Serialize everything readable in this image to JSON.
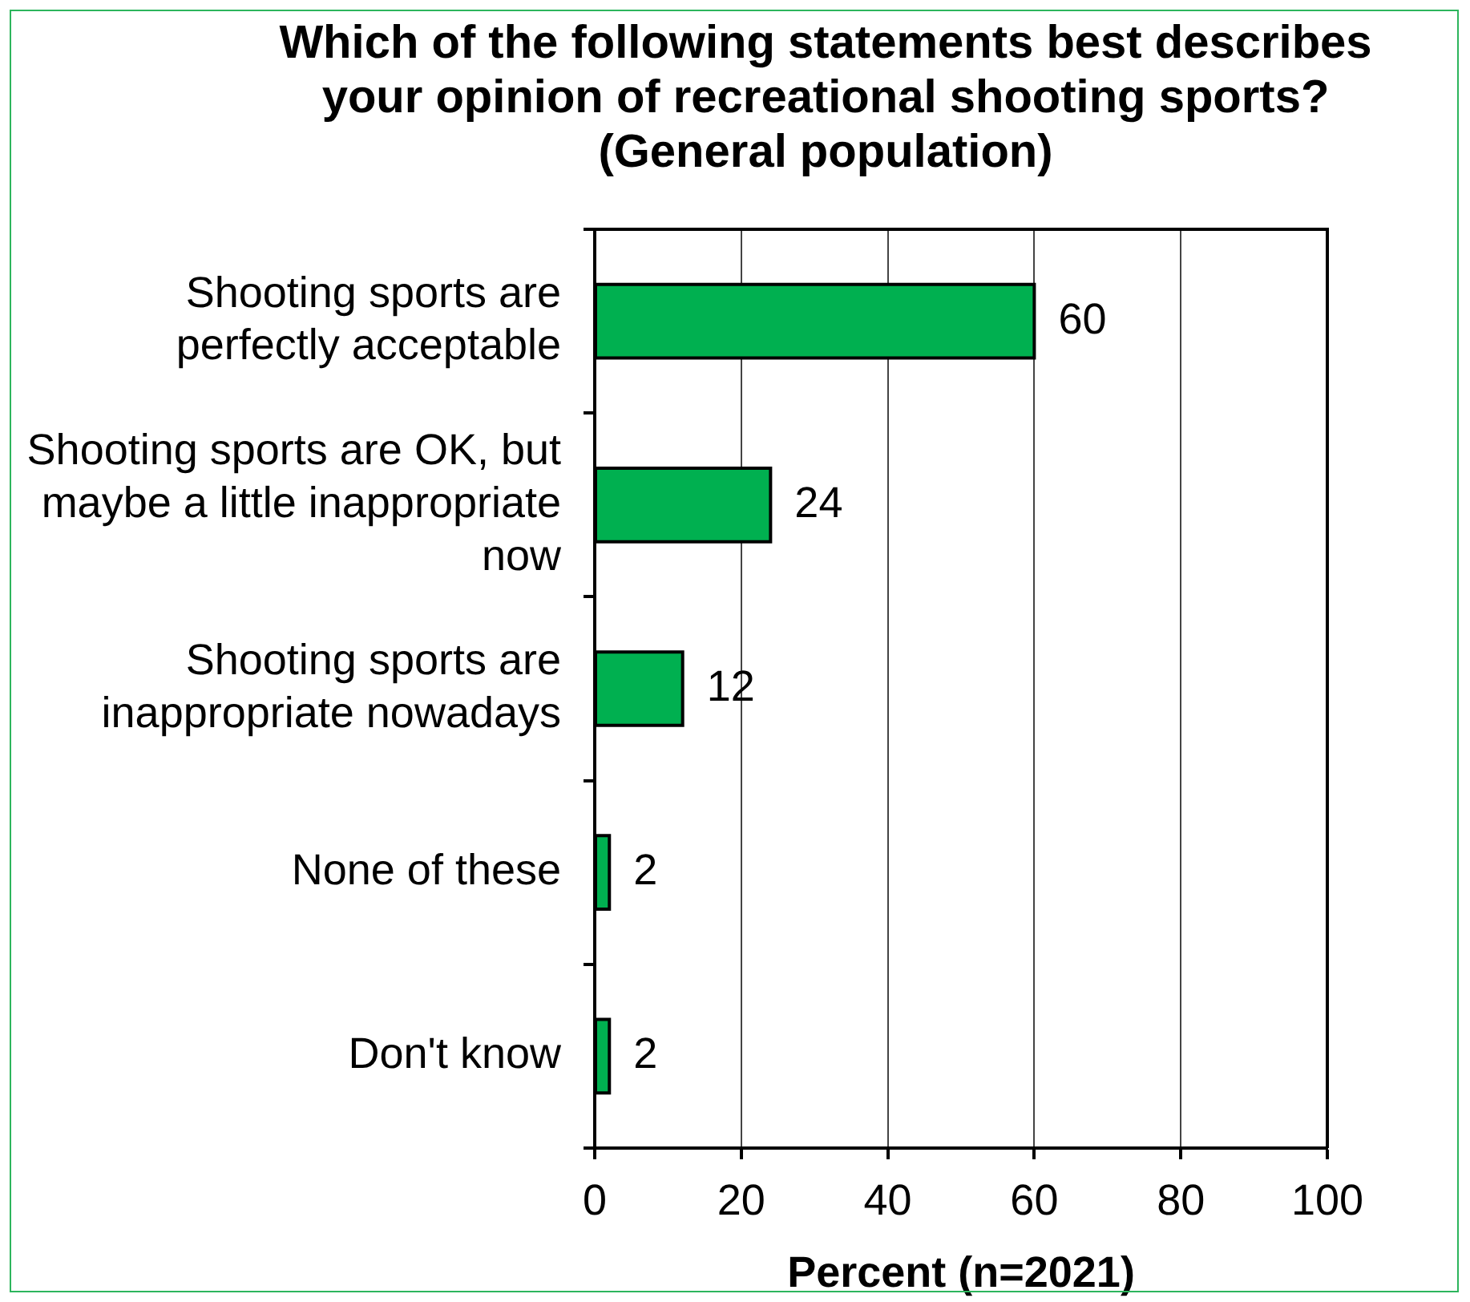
{
  "chart_data": {
    "type": "bar",
    "orientation": "horizontal",
    "title": "Which of the following statements best describes\nyour opinion of recreational shooting sports?\n(General population)",
    "xlabel": "Percent (n=2021)",
    "categories": [
      "Shooting sports are\nperfectly acceptable",
      "Shooting sports are OK, but\nmaybe a little inappropriate\nnow",
      "Shooting sports are\ninappropriate nowadays",
      "None of these",
      "Don't know"
    ],
    "values": [
      60,
      24,
      12,
      2,
      2
    ],
    "color": "#00b050",
    "xlim": [
      0,
      100
    ],
    "xticks": [
      0,
      20,
      40,
      60,
      80,
      100
    ],
    "grid": "x",
    "data_labels": true
  }
}
